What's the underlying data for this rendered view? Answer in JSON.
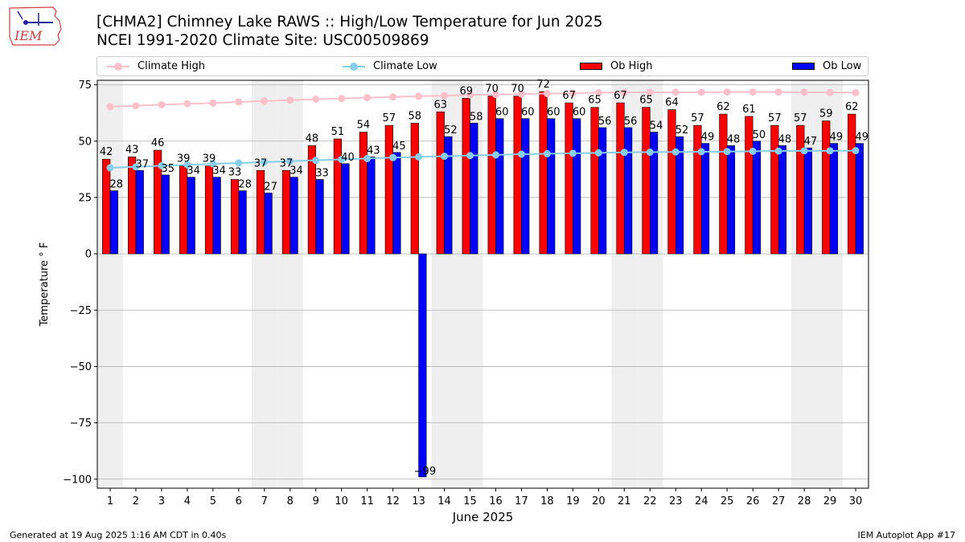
{
  "header": {
    "title_line1": "[CHMA2] Chimney Lake RAWS :: High/Low Temperature for Jun 2025",
    "title_line2": "NCEI 1991-2020 Climate Site: USC00509869",
    "logo_text": "IEM"
  },
  "legend": {
    "climate_high": "Climate High",
    "climate_low": "Climate Low",
    "ob_high": "Ob High",
    "ob_low": "Ob Low"
  },
  "colors": {
    "climate_high": "#ffc0cb",
    "climate_low": "#87ceeb",
    "ob_high": "#ff0000",
    "ob_low": "#0000ff",
    "weekend_band": "#efefef",
    "grid": "#b0b0b0"
  },
  "footer": {
    "generated": "Generated at 19 Aug 2025 1:16 AM CDT in 0.40s",
    "app": "IEM Autoplot App #17"
  },
  "chart_data": {
    "type": "bar",
    "xlabel": "June 2025",
    "ylabel": "Temperature ° F",
    "ylim": [
      -104,
      77
    ],
    "yticks": [
      75,
      50,
      25,
      0,
      -25,
      -50,
      -75,
      -100
    ],
    "ytick_labels": [
      "75",
      "50",
      "25",
      "0",
      "−25",
      "−50",
      "−75",
      "−100"
    ],
    "grid": true,
    "legend_position": "top",
    "x": [
      1,
      2,
      3,
      4,
      5,
      6,
      7,
      8,
      9,
      10,
      11,
      12,
      13,
      14,
      15,
      16,
      17,
      18,
      19,
      20,
      21,
      22,
      23,
      24,
      25,
      26,
      27,
      28,
      29,
      30
    ],
    "weekend_days": [
      1,
      7,
      8,
      14,
      15,
      21,
      22,
      28,
      29
    ],
    "series": [
      {
        "name": "Ob High",
        "kind": "bar",
        "values": [
          42,
          43,
          46,
          39,
          39,
          33,
          37,
          37,
          48,
          51,
          54,
          57,
          58,
          63,
          69,
          70,
          70,
          72,
          67,
          65,
          67,
          65,
          64,
          57,
          62,
          61,
          57,
          57,
          59,
          62
        ]
      },
      {
        "name": "Ob Low",
        "kind": "bar",
        "values": [
          28,
          37,
          35,
          34,
          34,
          28,
          27,
          34,
          33,
          40,
          43,
          45,
          -99,
          52,
          58,
          60,
          60,
          60,
          60,
          56,
          56,
          54,
          52,
          49,
          48,
          50,
          48,
          47,
          49,
          49
        ]
      },
      {
        "name": "Climate High",
        "kind": "line",
        "values": [
          65.3,
          65.7,
          66.2,
          66.6,
          66.9,
          67.4,
          67.8,
          68.2,
          68.6,
          68.9,
          69.3,
          69.6,
          69.9,
          70.2,
          70.5,
          70.7,
          70.9,
          71.1,
          71.3,
          71.5,
          71.6,
          71.7,
          71.7,
          71.7,
          71.8,
          71.8,
          71.8,
          71.7,
          71.6,
          71.5
        ]
      },
      {
        "name": "Climate Low",
        "kind": "line",
        "values": [
          38.2,
          38.6,
          39.1,
          39.5,
          39.9,
          40.3,
          40.7,
          41.1,
          41.5,
          41.9,
          42.3,
          42.7,
          43.0,
          43.3,
          43.6,
          43.9,
          44.2,
          44.4,
          44.6,
          44.8,
          45.0,
          45.1,
          45.2,
          45.3,
          45.4,
          45.5,
          45.6,
          45.7,
          45.7,
          45.8
        ]
      }
    ]
  }
}
